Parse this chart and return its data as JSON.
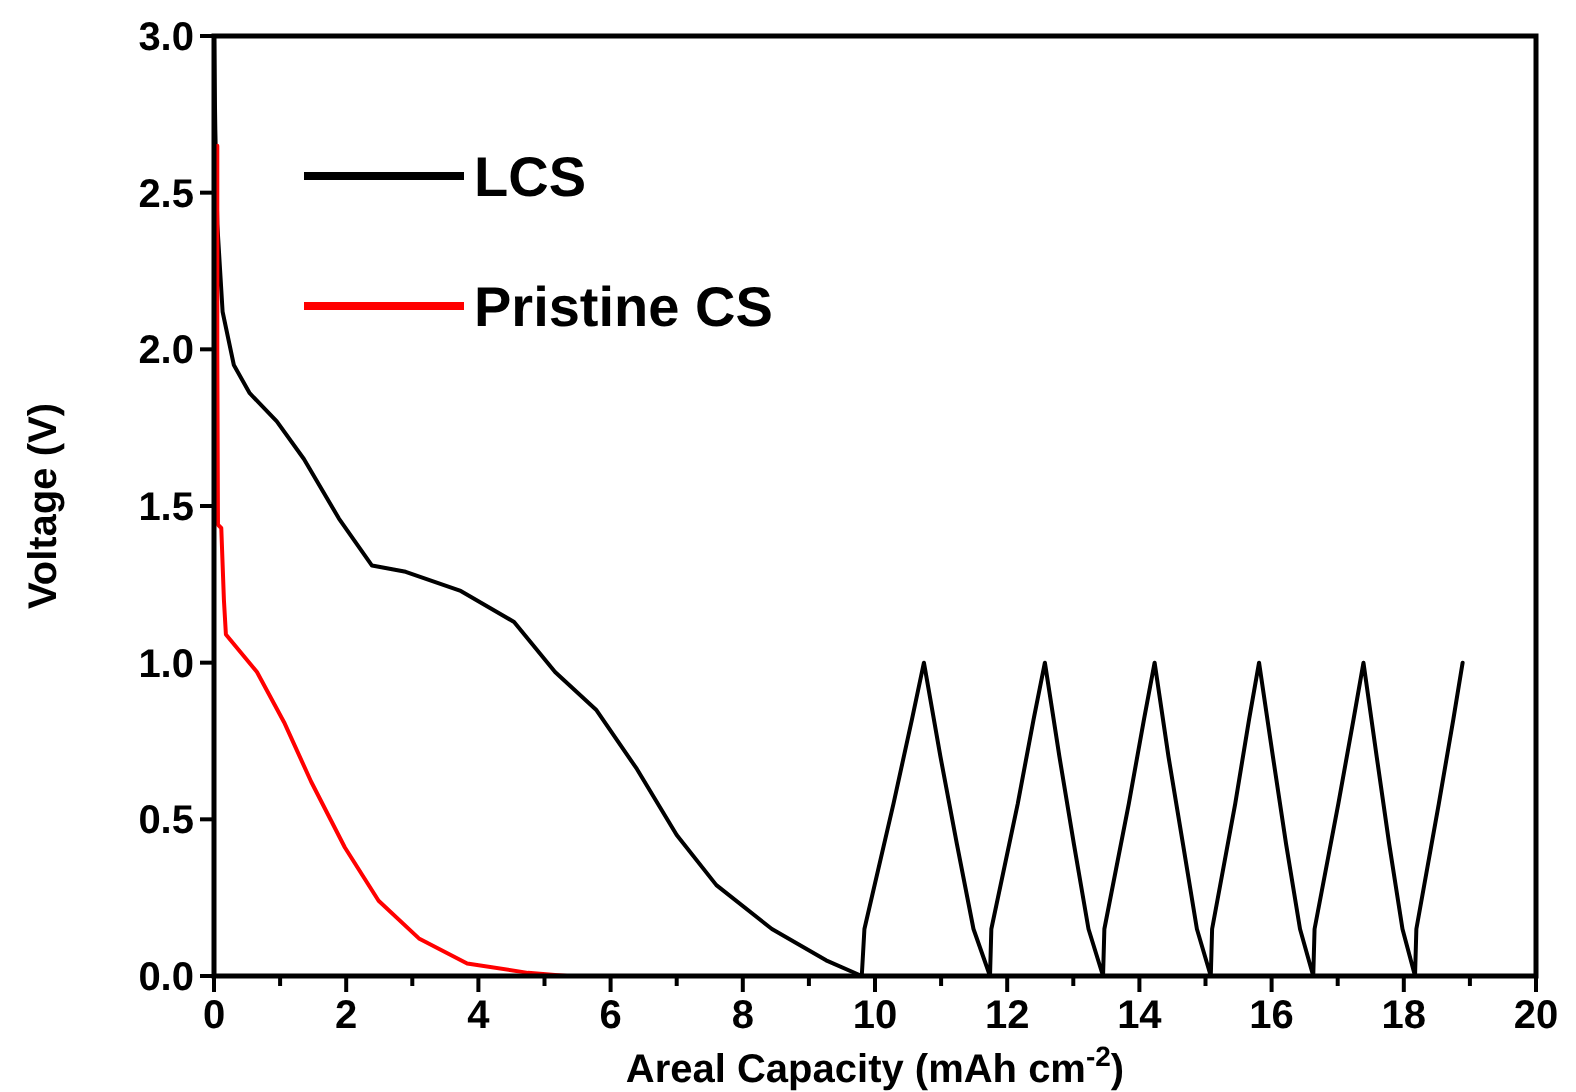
{
  "chart_data": {
    "type": "line",
    "xlabel": "Areal Capacity (mAh cm$^{-2}$)",
    "ylabel": "Voltage (V)",
    "xlim": [
      0,
      20
    ],
    "ylim": [
      0,
      3
    ],
    "xticks": [
      0,
      {
        "value": 1,
        "label": null
      },
      2,
      {
        "value": 3,
        "label": null
      },
      4,
      {
        "value": 5,
        "label": null
      },
      6,
      {
        "value": 7,
        "label": null
      },
      8,
      {
        "value": 9,
        "label": null
      },
      10,
      {
        "value": 11,
        "label": null
      },
      12,
      {
        "value": 13,
        "label": null
      },
      14,
      {
        "value": 15,
        "label": null
      },
      16,
      {
        "value": 17,
        "label": null
      },
      18,
      {
        "value": 19,
        "label": null
      },
      20
    ],
    "yticks": [
      {
        "value": 0,
        "label": "0.0"
      },
      0.5,
      {
        "value": 1,
        "label": "1.0"
      },
      1.5,
      {
        "value": 2,
        "label": "2.0"
      },
      2.5,
      {
        "value": 3,
        "label": "3.0"
      }
    ],
    "grid": false,
    "legend": "top left",
    "marker": "none",
    "line_style": "solid",
    "series": [
      {
        "name": "LCS",
        "color": "#000000",
        "x": [
          0,
          0.02,
          0.05,
          0.13,
          0.3,
          0.54,
          0.95,
          1.36,
          1.89,
          2.39,
          2.9,
          3.72,
          4.54,
          5.16,
          5.78,
          6.4,
          7.0,
          7.6,
          8.44,
          9.26,
          9.8,
          9.84,
          10.28,
          10.56,
          10.74,
          10.99,
          11.24,
          11.49,
          11.74,
          11.76,
          12.16,
          12.4,
          12.57,
          12.79,
          13.01,
          13.23,
          13.45,
          13.47,
          13.84,
          14.07,
          14.23,
          14.44,
          14.66,
          14.87,
          15.08,
          15.1,
          15.45,
          15.66,
          15.81,
          16.02,
          16.22,
          16.43,
          16.63,
          16.65,
          17.01,
          17.24,
          17.39,
          17.59,
          17.78,
          17.98,
          18.17,
          18.19,
          18.53,
          18.75,
          18.89
        ],
        "values": [
          3.0,
          2.7,
          2.4,
          2.12,
          1.95,
          1.86,
          1.77,
          1.65,
          1.46,
          1.31,
          1.29,
          1.23,
          1.13,
          0.97,
          0.85,
          0.66,
          0.45,
          0.29,
          0.15,
          0.05,
          0,
          0.15,
          0.55,
          0.82,
          1,
          0.7,
          0.42,
          0.15,
          0,
          0.15,
          0.55,
          0.82,
          1,
          0.7,
          0.42,
          0.15,
          0,
          0.15,
          0.55,
          0.82,
          1,
          0.7,
          0.42,
          0.15,
          0,
          0.15,
          0.55,
          0.82,
          1,
          0.7,
          0.42,
          0.15,
          0,
          0.15,
          0.55,
          0.82,
          1,
          0.7,
          0.42,
          0.15,
          0,
          0.15,
          0.55,
          0.82,
          1
        ]
      },
      {
        "name": "Pristine CS",
        "color": "#ff0000",
        "x": [
          0.05,
          0.05,
          0.06,
          0.11,
          0.15,
          0.18,
          0.65,
          1.06,
          1.47,
          1.98,
          2.49,
          3.1,
          3.83,
          4.75,
          5.34
        ],
        "values": [
          2.65,
          2.0,
          1.44,
          1.43,
          1.2,
          1.09,
          0.97,
          0.81,
          0.62,
          0.41,
          0.24,
          0.12,
          0.04,
          0.01,
          0
        ]
      }
    ]
  }
}
